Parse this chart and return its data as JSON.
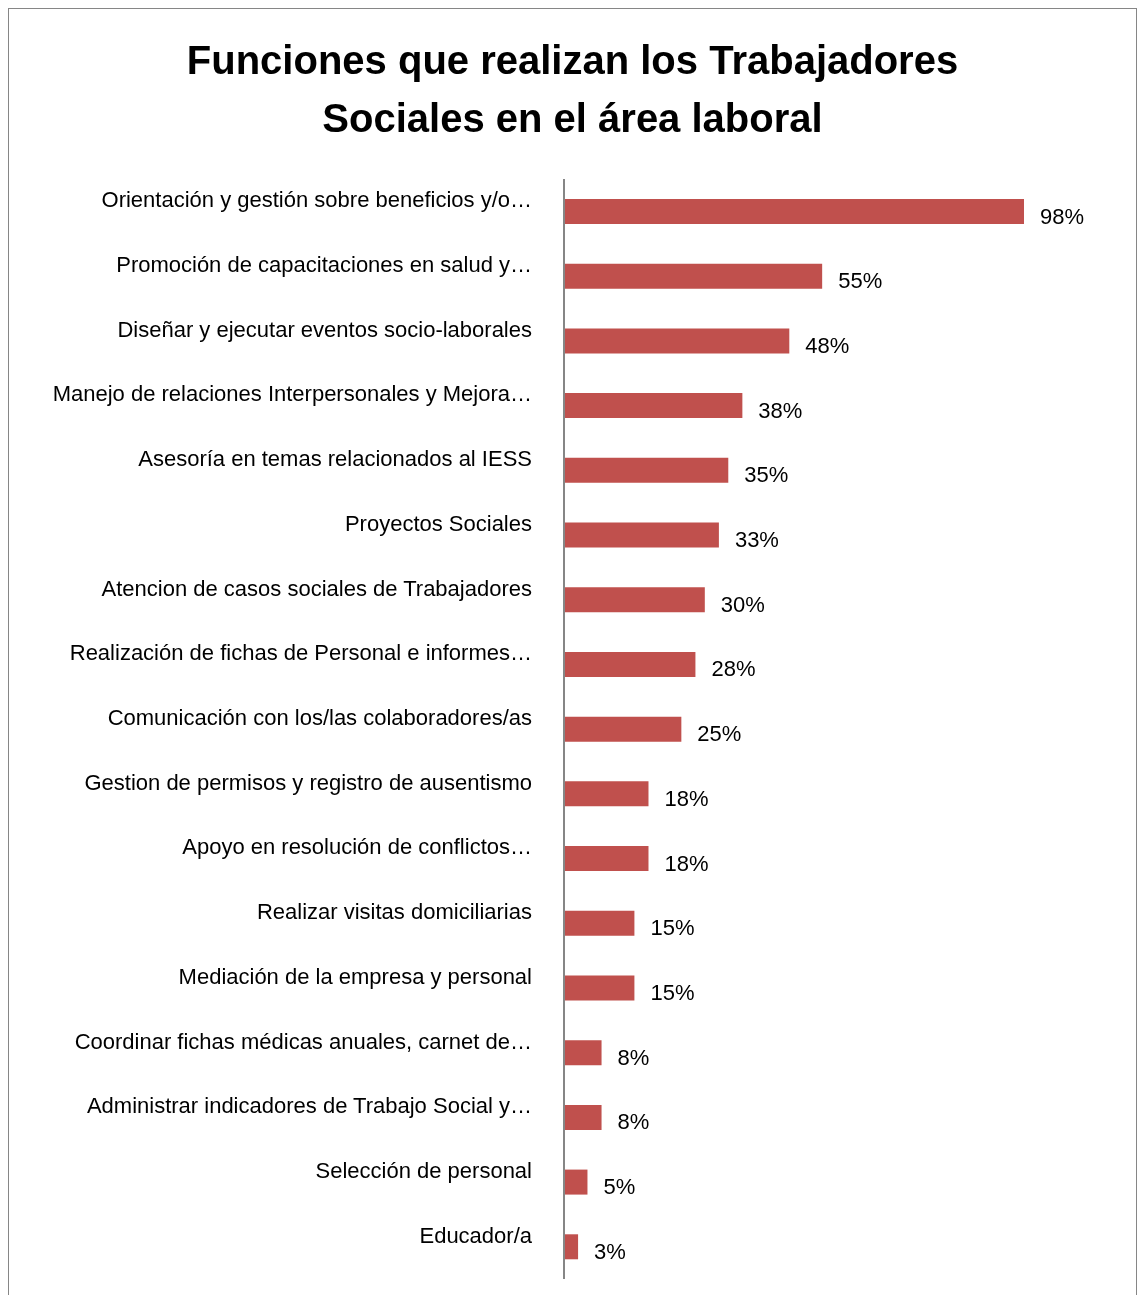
{
  "chart_data": {
    "type": "bar",
    "orientation": "horizontal",
    "title": "Funciones que realizan los Trabajadores Sociales en el área laboral",
    "categories": [
      "Orientación y gestión sobre beneficios y/o…",
      "Promoción de capacitaciones en salud y…",
      "Diseñar y ejecutar eventos socio-laborales",
      "Manejo de relaciones Interpersonales y Mejora…",
      "Asesoría en temas relacionados al IESS",
      "Proyectos Sociales",
      "Atencion de casos sociales de Trabajadores",
      "Realización de fichas de Personal e informes…",
      "Comunicación con los/las colaboradores/as",
      "Gestion de permisos y registro de ausentismo",
      "Apoyo en resolución de conflictos…",
      "Realizar visitas domiciliarias",
      "Mediación de la empresa y personal",
      "Coordinar fichas médicas anuales, carnet de…",
      "Administrar indicadores de Trabajo Social y…",
      "Selección de personal",
      "Educador/a"
    ],
    "values": [
      98,
      55,
      48,
      38,
      35,
      33,
      30,
      28,
      25,
      18,
      18,
      15,
      15,
      8,
      8,
      5,
      3
    ],
    "value_labels": [
      "98%",
      "55%",
      "48%",
      "38%",
      "35%",
      "33%",
      "30%",
      "28%",
      "25%",
      "18%",
      "18%",
      "15%",
      "15%",
      "8%",
      "8%",
      "5%",
      "3%"
    ],
    "color": "#c0504d"
  }
}
